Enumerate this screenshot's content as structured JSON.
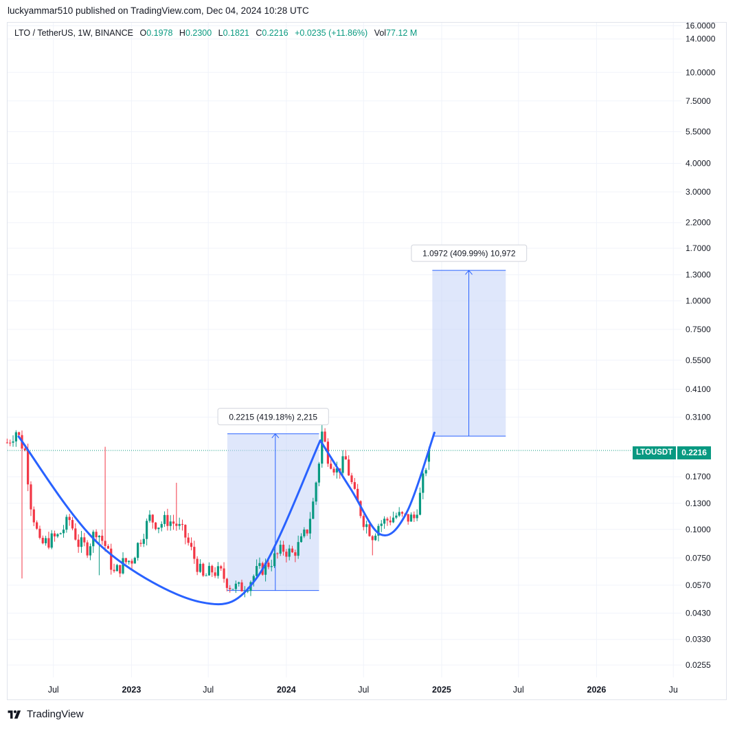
{
  "publisher_line": "luckyammar510 published on TradingView.com, Dec 04, 2024 10:28 UTC",
  "legend": {
    "symbol": "LTO / TetherUS, 1W, BINANCE",
    "open_label": "O",
    "open": "0.1978",
    "high_label": "H",
    "high": "0.2300",
    "low_label": "L",
    "low": "0.1821",
    "close_label": "C",
    "close": "0.2216",
    "change": "+0.0235 (+11.86%)",
    "vol_label": "Vol",
    "vol": "77.12 M"
  },
  "price_tag": {
    "symbol": "LTOUSDT",
    "value": "0.2216"
  },
  "brand": "TradingView",
  "colors": {
    "up": "#089981",
    "down": "#f23645",
    "curve": "#2962ff",
    "box_fill": "#c5d3f7",
    "box_line": "#2962ff"
  },
  "chart_data": {
    "type": "candlestick",
    "y_scale": "log",
    "ylim": [
      0.0225,
      16.5
    ],
    "y_ticks": [
      "16.0000",
      "14.0000",
      "10.0000",
      "7.5000",
      "5.5000",
      "4.0000",
      "3.0000",
      "2.2000",
      "1.7000",
      "1.3000",
      "1.0000",
      "0.7500",
      "0.5500",
      "0.4100",
      "0.3100",
      "0.2216",
      "0.1700",
      "0.1300",
      "0.1000",
      "0.0750",
      "0.0570",
      "0.0430",
      "0.0330",
      "0.0255"
    ],
    "x_ticks": [
      "Jul",
      "2023",
      "Jul",
      "2024",
      "Jul",
      "2025",
      "Jul",
      "2026",
      "Ju"
    ],
    "x_tick_dates": [
      "2022-07-01",
      "2023-01-01",
      "2023-07-01",
      "2024-01-01",
      "2024-07-01",
      "2025-01-01",
      "2025-07-01",
      "2026-01-01",
      "2026-07-01"
    ],
    "xlim": [
      "2022-03-15",
      "2026-07-20"
    ],
    "last_price": 0.2216,
    "grid": true,
    "price_path": [
      [
        "2022-03-14",
        0.24
      ],
      [
        "2022-04-04",
        0.27
      ],
      [
        "2022-04-25",
        0.22
      ],
      [
        "2022-05-09",
        0.13
      ],
      [
        "2022-05-30",
        0.085
      ],
      [
        "2022-06-20",
        0.089
      ],
      [
        "2022-07-11",
        0.093
      ],
      [
        "2022-08-08",
        0.11
      ],
      [
        "2022-08-29",
        0.087
      ],
      [
        "2022-09-19",
        0.083
      ],
      [
        "2022-10-10",
        0.1
      ],
      [
        "2022-10-31",
        0.085
      ],
      [
        "2022-11-21",
        0.064
      ],
      [
        "2022-12-12",
        0.071
      ],
      [
        "2023-01-02",
        0.074
      ],
      [
        "2023-01-23",
        0.092
      ],
      [
        "2023-02-13",
        0.112
      ],
      [
        "2023-03-06",
        0.105
      ],
      [
        "2023-03-27",
        0.11
      ],
      [
        "2023-04-17",
        0.105
      ],
      [
        "2023-05-08",
        0.093
      ],
      [
        "2023-05-29",
        0.075
      ],
      [
        "2023-06-19",
        0.061
      ],
      [
        "2023-07-10",
        0.066
      ],
      [
        "2023-07-31",
        0.064
      ],
      [
        "2023-08-21",
        0.057
      ],
      [
        "2023-09-11",
        0.055
      ],
      [
        "2023-10-02",
        0.058
      ],
      [
        "2023-10-23",
        0.065
      ],
      [
        "2023-11-13",
        0.069
      ],
      [
        "2023-12-04",
        0.075
      ],
      [
        "2023-12-25",
        0.082
      ],
      [
        "2024-01-15",
        0.078
      ],
      [
        "2024-02-05",
        0.088
      ],
      [
        "2024-02-19",
        0.1
      ],
      [
        "2024-03-04",
        0.13
      ],
      [
        "2024-03-18",
        0.2
      ],
      [
        "2024-03-25",
        0.265
      ],
      [
        "2024-04-08",
        0.21
      ],
      [
        "2024-04-29",
        0.18
      ],
      [
        "2024-05-20",
        0.2
      ],
      [
        "2024-06-10",
        0.14
      ],
      [
        "2024-07-01",
        0.11
      ],
      [
        "2024-07-22",
        0.095
      ],
      [
        "2024-08-05",
        0.105
      ],
      [
        "2024-08-26",
        0.11
      ],
      [
        "2024-09-16",
        0.115
      ],
      [
        "2024-10-07",
        0.112
      ],
      [
        "2024-10-28",
        0.112
      ],
      [
        "2024-11-11",
        0.14
      ],
      [
        "2024-11-25",
        0.19
      ],
      [
        "2024-12-02",
        0.2216
      ]
    ],
    "spikes": [
      [
        "2022-10-31",
        0.23
      ],
      [
        "2022-10-17",
        0.063
      ],
      [
        "2022-04-18",
        0.061
      ],
      [
        "2023-04-17",
        0.16
      ],
      [
        "2024-03-25",
        0.3
      ],
      [
        "2024-07-22",
        0.077
      ]
    ],
    "curves": [
      {
        "name": "",
        "points": [
          [
            "2022-04-10",
            0.255
          ],
          [
            "2022-10-20",
            0.085
          ],
          [
            "2023-06-15",
            0.048
          ],
          [
            "2023-10-25",
            0.062
          ],
          [
            "2024-03-21",
            0.245
          ]
        ]
      },
      {
        "name": "",
        "points": [
          [
            "2024-03-21",
            0.245
          ],
          [
            "2024-06-01",
            0.15
          ],
          [
            "2024-08-10",
            0.095
          ],
          [
            "2024-10-10",
            0.118
          ],
          [
            "2024-12-15",
            0.265
          ]
        ]
      }
    ],
    "measures": [
      {
        "label": "0.2215 (419.18%) 2,215",
        "x0": "2023-08-15",
        "x1": "2024-03-18",
        "y0": 0.054,
        "y1": 0.262,
        "arrow_x": "2023-12-06"
      },
      {
        "label": "1.0972 (409.99%) 10,972",
        "x0": "2024-12-10",
        "x1": "2025-06-01",
        "y0": 0.256,
        "y1": 1.36,
        "arrow_x": "2025-03-06"
      }
    ]
  }
}
